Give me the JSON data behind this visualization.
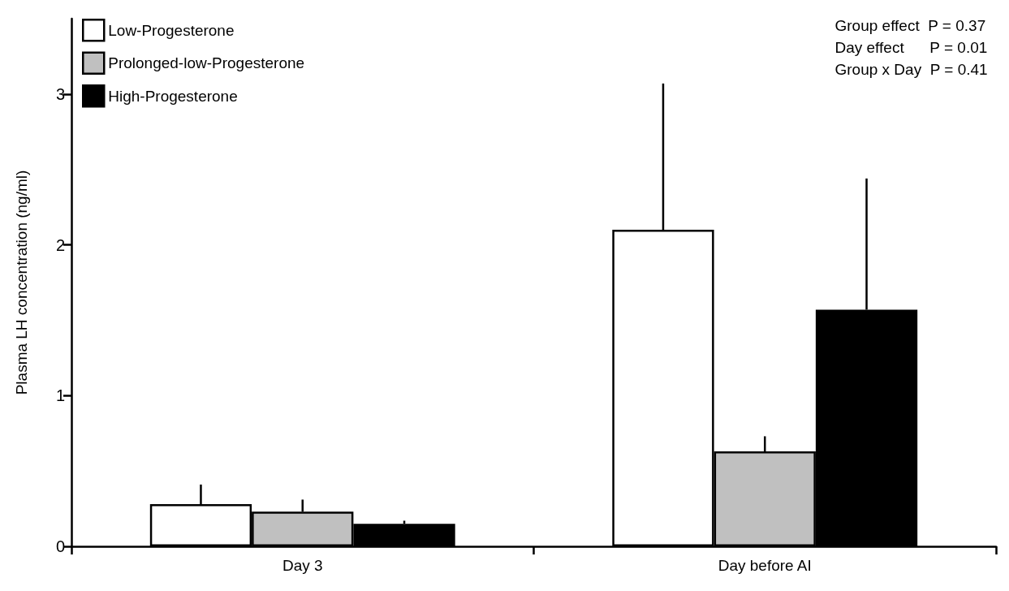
{
  "chart_data": {
    "type": "bar",
    "ylabel": "Plasma LH concentration (ng/ml)",
    "categories": [
      "Day 3",
      "Day before AI"
    ],
    "series": [
      {
        "name": "Low-Progesterone",
        "color": "#ffffff",
        "values": [
          0.28,
          2.1
        ],
        "errors": [
          [
            0.28,
            0.41
          ],
          [
            2.1,
            3.07
          ]
        ]
      },
      {
        "name": "Prolonged-low-Progesterone",
        "color": "#c0c0c0",
        "values": [
          0.23,
          0.63
        ],
        "errors": [
          [
            0.23,
            0.31
          ],
          [
            0.63,
            0.73
          ]
        ]
      },
      {
        "name": "High-Progesterone",
        "color": "#000000",
        "values": [
          0.15,
          1.57
        ],
        "errors": [
          [
            0.15,
            0.17
          ],
          [
            1.57,
            2.44
          ]
        ]
      }
    ],
    "ylim": [
      0,
      3.5
    ],
    "yticks": [
      0,
      1,
      2,
      3
    ],
    "grid": false,
    "legend": "top left",
    "annotations": [
      "Group effect  P = 0.37",
      "Day effect      P = 0.01",
      "Group x Day  P = 0.41"
    ]
  }
}
